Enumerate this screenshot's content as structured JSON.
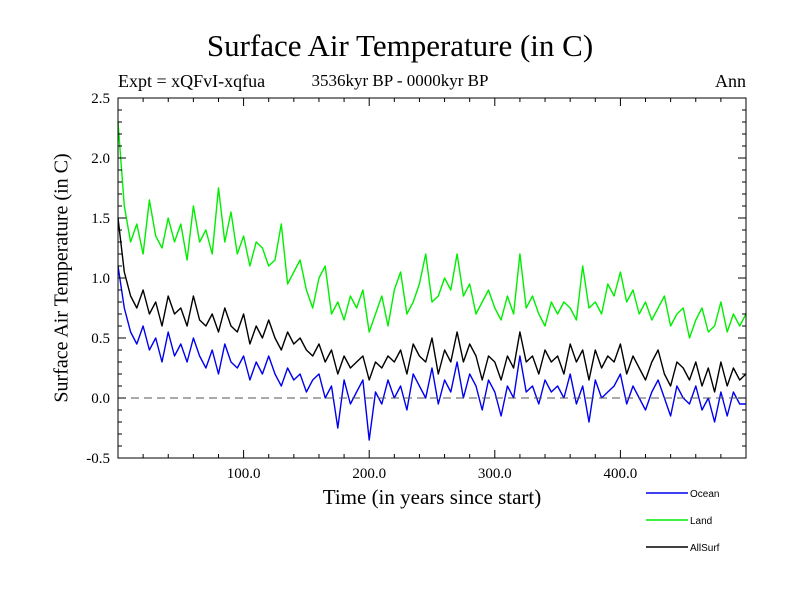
{
  "chart_data": {
    "type": "line",
    "title": "Surface Air Temperature (in C)",
    "subtitle": "3536kyr BP - 0000kyr BP",
    "experiment": "Expt = xQFvI-xqfua",
    "period": "Ann",
    "xlabel": "Time (in years since start)",
    "ylabel": "Surface Air Temperature (in C)",
    "xlim": [
      0,
      500
    ],
    "ylim": [
      -0.5,
      2.5
    ],
    "xticks": [
      100,
      200,
      300,
      400
    ],
    "xtick_labels": [
      "100.0",
      "200.0",
      "300.0",
      "400.0"
    ],
    "yticks": [
      -0.5,
      0.0,
      0.5,
      1.0,
      1.5,
      2.0,
      2.5
    ],
    "ytick_labels": [
      "-0.5",
      "0.0",
      "0.5",
      "1.0",
      "1.5",
      "2.0",
      "2.5"
    ],
    "reference_line": {
      "y": 0.0,
      "style": "dashed",
      "color": "#555555"
    },
    "x": [
      0,
      5,
      10,
      15,
      20,
      25,
      30,
      35,
      40,
      45,
      50,
      55,
      60,
      65,
      70,
      75,
      80,
      85,
      90,
      95,
      100,
      105,
      110,
      115,
      120,
      125,
      130,
      135,
      140,
      145,
      150,
      155,
      160,
      165,
      170,
      175,
      180,
      185,
      190,
      195,
      200,
      205,
      210,
      215,
      220,
      225,
      230,
      235,
      240,
      245,
      250,
      255,
      260,
      265,
      270,
      275,
      280,
      285,
      290,
      295,
      300,
      305,
      310,
      315,
      320,
      325,
      330,
      335,
      340,
      345,
      350,
      355,
      360,
      365,
      370,
      375,
      380,
      385,
      390,
      395,
      400,
      405,
      410,
      415,
      420,
      425,
      430,
      435,
      440,
      445,
      450,
      455,
      460,
      465,
      470,
      475,
      480,
      485,
      490,
      495,
      500
    ],
    "series": [
      {
        "name": "Ocean",
        "color": "#0000ee",
        "values": [
          1.1,
          0.75,
          0.55,
          0.45,
          0.6,
          0.4,
          0.5,
          0.3,
          0.55,
          0.35,
          0.45,
          0.3,
          0.5,
          0.35,
          0.25,
          0.4,
          0.2,
          0.45,
          0.3,
          0.25,
          0.35,
          0.15,
          0.3,
          0.2,
          0.35,
          0.2,
          0.1,
          0.25,
          0.15,
          0.2,
          0.05,
          0.15,
          0.2,
          0.0,
          0.1,
          -0.25,
          0.15,
          -0.05,
          0.05,
          0.15,
          -0.35,
          0.05,
          -0.05,
          0.15,
          0.0,
          0.1,
          -0.1,
          0.2,
          0.1,
          0.0,
          0.25,
          -0.05,
          0.15,
          0.05,
          0.3,
          0.0,
          0.2,
          0.1,
          -0.1,
          0.15,
          0.05,
          -0.15,
          0.1,
          0.0,
          0.35,
          0.05,
          0.1,
          -0.05,
          0.15,
          0.05,
          0.1,
          0.0,
          0.2,
          -0.05,
          0.1,
          -0.2,
          0.15,
          0.0,
          0.05,
          0.1,
          0.2,
          -0.05,
          0.1,
          0.0,
          -0.1,
          0.05,
          0.15,
          0.0,
          -0.15,
          0.1,
          0.0,
          -0.05,
          0.1,
          -0.1,
          0.0,
          -0.2,
          0.05,
          -0.15,
          0.05,
          -0.05,
          -0.05
        ]
      },
      {
        "name": "Land",
        "color": "#00ee00",
        "values": [
          2.3,
          1.6,
          1.3,
          1.45,
          1.2,
          1.65,
          1.35,
          1.25,
          1.5,
          1.3,
          1.45,
          1.15,
          1.6,
          1.3,
          1.4,
          1.2,
          1.75,
          1.3,
          1.55,
          1.2,
          1.35,
          1.1,
          1.3,
          1.25,
          1.1,
          1.15,
          1.45,
          0.95,
          1.05,
          1.15,
          0.9,
          0.75,
          1.0,
          1.1,
          0.7,
          0.8,
          0.65,
          0.85,
          0.75,
          0.9,
          0.55,
          0.7,
          0.85,
          0.6,
          0.9,
          1.05,
          0.7,
          0.8,
          0.95,
          1.2,
          0.8,
          0.85,
          1.0,
          0.9,
          1.2,
          0.85,
          0.95,
          0.7,
          0.8,
          0.9,
          0.75,
          0.65,
          0.85,
          0.7,
          1.2,
          0.75,
          0.85,
          0.7,
          0.6,
          0.8,
          0.7,
          0.8,
          0.75,
          0.65,
          1.1,
          0.75,
          0.8,
          0.7,
          0.95,
          0.85,
          1.05,
          0.8,
          0.9,
          0.7,
          0.8,
          0.65,
          0.75,
          0.85,
          0.6,
          0.7,
          0.75,
          0.5,
          0.65,
          0.75,
          0.55,
          0.6,
          0.8,
          0.55,
          0.7,
          0.6,
          0.7
        ]
      },
      {
        "name": "AllSurf",
        "color": "#000000",
        "values": [
          1.5,
          1.05,
          0.85,
          0.75,
          0.9,
          0.7,
          0.8,
          0.6,
          0.85,
          0.7,
          0.75,
          0.6,
          0.85,
          0.65,
          0.6,
          0.7,
          0.55,
          0.75,
          0.6,
          0.55,
          0.7,
          0.45,
          0.6,
          0.5,
          0.65,
          0.5,
          0.4,
          0.55,
          0.45,
          0.5,
          0.4,
          0.35,
          0.45,
          0.3,
          0.4,
          0.2,
          0.35,
          0.25,
          0.3,
          0.35,
          0.15,
          0.3,
          0.25,
          0.35,
          0.3,
          0.4,
          0.2,
          0.45,
          0.35,
          0.3,
          0.5,
          0.2,
          0.4,
          0.3,
          0.55,
          0.3,
          0.45,
          0.35,
          0.15,
          0.35,
          0.3,
          0.15,
          0.35,
          0.25,
          0.55,
          0.3,
          0.35,
          0.2,
          0.4,
          0.3,
          0.35,
          0.2,
          0.45,
          0.3,
          0.4,
          0.15,
          0.4,
          0.25,
          0.35,
          0.3,
          0.45,
          0.2,
          0.35,
          0.25,
          0.15,
          0.3,
          0.4,
          0.2,
          0.1,
          0.3,
          0.25,
          0.15,
          0.3,
          0.1,
          0.25,
          0.05,
          0.3,
          0.1,
          0.25,
          0.15,
          0.2
        ]
      }
    ]
  }
}
